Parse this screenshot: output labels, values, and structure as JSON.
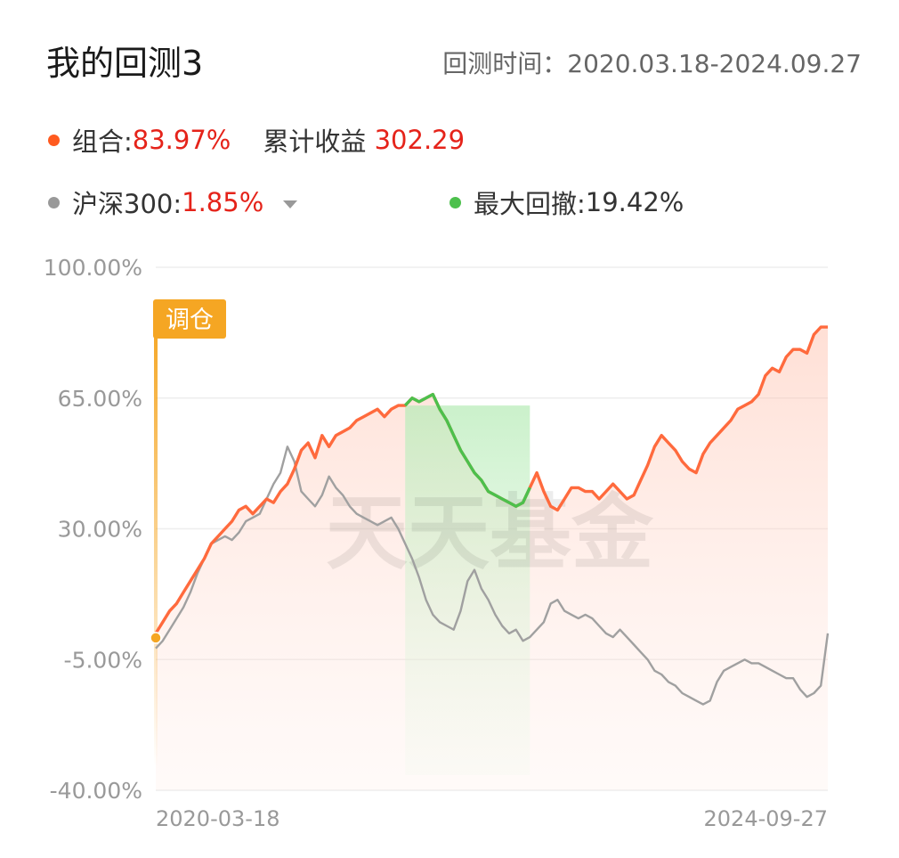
{
  "header": {
    "title": "我的回测3",
    "period_label": "回测时间：",
    "period_range": "2020.03.18-2024.09.27"
  },
  "legend": {
    "portfolio_label": "组合:",
    "portfolio_value": "83.97%",
    "cumulative_label": "累计收益",
    "cumulative_value": "302.29",
    "benchmark_label": "沪深300:",
    "benchmark_value": "1.85%",
    "drawdown_label": "最大回撤:",
    "drawdown_value": "19.42%"
  },
  "colors": {
    "portfolio": "#ff6a3d",
    "benchmark": "#999999",
    "drawdown": "#4cc04c",
    "rebalance": "#f5a623",
    "negative_red": "#e5231a"
  },
  "watermark": "天天基金",
  "icons": {
    "benchmark_dropdown": "caret-down-icon"
  },
  "chart_data": {
    "type": "line",
    "ylim": [
      -40,
      100
    ],
    "y_ticks": [
      "100.00%",
      "65.00%",
      "30.00%",
      "-5.00%",
      "-40.00%"
    ],
    "x_ticks": [
      "2020-03-18",
      "2024-09-27"
    ],
    "marker_label": "调仓",
    "drawdown_range": [
      0.37,
      0.56
    ],
    "series": [
      {
        "name": "组合",
        "values": [
          2,
          5,
          8,
          10,
          13,
          16,
          19,
          22,
          26,
          28,
          30,
          32,
          35,
          36,
          34,
          36,
          38,
          37,
          40,
          42,
          46,
          51,
          53,
          49,
          55,
          52,
          55,
          56,
          57,
          59,
          60,
          61,
          62,
          60,
          62,
          63,
          63,
          65,
          64,
          65,
          66,
          62,
          59,
          55,
          51,
          48,
          45,
          43,
          40,
          39,
          38,
          37,
          36,
          37,
          41,
          45,
          40,
          36,
          35,
          38,
          41,
          41,
          40,
          40,
          38,
          40,
          42,
          40,
          38,
          39,
          43,
          47,
          52,
          55,
          53,
          51,
          48,
          46,
          45,
          50,
          53,
          55,
          57,
          59,
          62,
          63,
          64,
          66,
          71,
          73,
          72,
          76,
          78,
          78,
          77,
          82,
          84,
          84
        ]
      },
      {
        "name": "沪深300",
        "values": [
          -2,
          0,
          3,
          6,
          9,
          13,
          18,
          22,
          26,
          27,
          28,
          27,
          29,
          32,
          33,
          34,
          38,
          42,
          45,
          52,
          48,
          40,
          38,
          36,
          39,
          44,
          41,
          39,
          36,
          34,
          33,
          32,
          31,
          32,
          33,
          30,
          26,
          22,
          17,
          11,
          7,
          5,
          4,
          3,
          8,
          16,
          19,
          14,
          11,
          7,
          4,
          2,
          3,
          0,
          1,
          3,
          5,
          10,
          11,
          8,
          7,
          6,
          7,
          6,
          4,
          2,
          1,
          3,
          1,
          -1,
          -3,
          -5,
          -8,
          -9,
          -11,
          -12,
          -14,
          -15,
          -16,
          -17,
          -16,
          -11,
          -8,
          -7,
          -6,
          -5,
          -6,
          -6,
          -7,
          -8,
          -9,
          -10,
          -10,
          -13,
          -15,
          -14,
          -12,
          2
        ]
      }
    ]
  }
}
